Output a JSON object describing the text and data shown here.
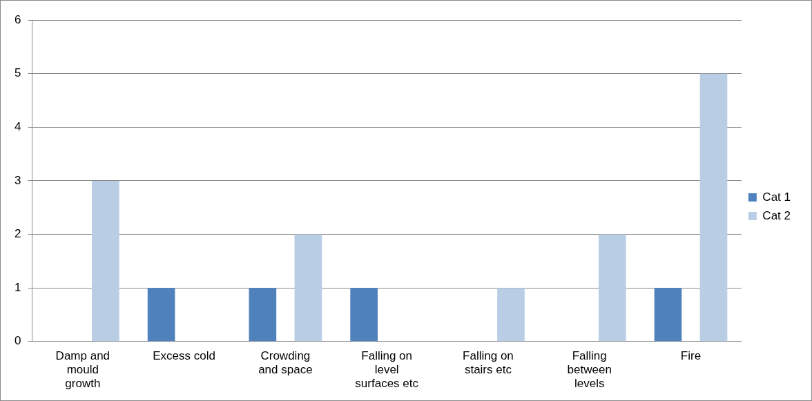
{
  "chart_data": {
    "type": "bar",
    "categories": [
      "Damp and mould growth",
      "Excess cold",
      "Crowding and space",
      "Falling on level surfaces etc",
      "Falling on stairs etc",
      "Falling between levels",
      "Fire"
    ],
    "series": [
      {
        "name": "Cat 1",
        "color": "#4f81bd",
        "values": [
          0,
          1,
          1,
          1,
          0,
          0,
          1
        ]
      },
      {
        "name": "Cat 2",
        "color": "#b9cde5",
        "values": [
          3,
          0,
          2,
          0,
          1,
          2,
          5
        ]
      }
    ],
    "ylim": [
      0,
      6
    ],
    "yticks": [
      0,
      1,
      2,
      3,
      4,
      5,
      6
    ],
    "grid": "y",
    "legend": "right"
  }
}
